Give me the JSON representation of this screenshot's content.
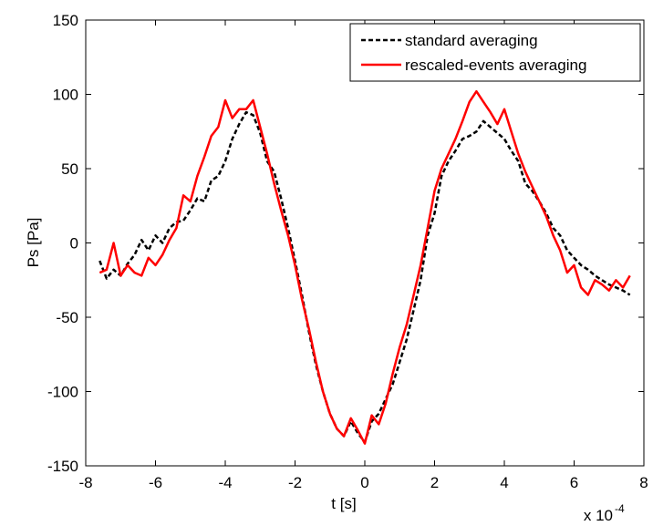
{
  "chart_data": {
    "type": "line",
    "title": "",
    "xlabel": "t [s]",
    "ylabel": "Ps [Pa]",
    "x_multiplier_label": "x 10",
    "x_multiplier_exponent": "-4",
    "xlim": [
      -8,
      8
    ],
    "ylim": [
      -150,
      150
    ],
    "x_ticks": [
      -8,
      -6,
      -4,
      -2,
      0,
      2,
      4,
      6,
      8
    ],
    "x_tick_labels": [
      "-8",
      "-6",
      "-4",
      "-2",
      "0",
      "2",
      "4",
      "6",
      "8"
    ],
    "y_ticks": [
      -150,
      -100,
      -50,
      0,
      50,
      100,
      150
    ],
    "y_tick_labels": [
      "-150",
      "-100",
      "-50",
      "0",
      "50",
      "100",
      "150"
    ],
    "grid": false,
    "legend_position": "top-right",
    "series": [
      {
        "name": "standard averaging",
        "color": "#000000",
        "dash": "dashed",
        "x": [
          -7.6,
          -7.4,
          -7.2,
          -7.0,
          -6.8,
          -6.6,
          -6.4,
          -6.2,
          -6.0,
          -5.8,
          -5.6,
          -5.4,
          -5.2,
          -5.0,
          -4.8,
          -4.6,
          -4.4,
          -4.2,
          -4.0,
          -3.8,
          -3.6,
          -3.4,
          -3.2,
          -3.0,
          -2.8,
          -2.6,
          -2.4,
          -2.2,
          -2.0,
          -1.8,
          -1.6,
          -1.4,
          -1.2,
          -1.0,
          -0.8,
          -0.6,
          -0.4,
          -0.2,
          0.0,
          0.2,
          0.4,
          0.6,
          0.8,
          1.0,
          1.2,
          1.4,
          1.6,
          1.8,
          2.0,
          2.2,
          2.4,
          2.6,
          2.8,
          3.0,
          3.2,
          3.4,
          3.6,
          3.8,
          4.0,
          4.2,
          4.4,
          4.6,
          4.8,
          5.0,
          5.2,
          5.4,
          5.6,
          5.8,
          6.0,
          6.2,
          6.4,
          6.6,
          6.8,
          7.0,
          7.2,
          7.4,
          7.6
        ],
        "values": [
          -12,
          -24,
          -18,
          -22,
          -14,
          -8,
          2,
          -5,
          5,
          0,
          10,
          14,
          15,
          22,
          30,
          28,
          42,
          45,
          55,
          70,
          80,
          88,
          86,
          74,
          55,
          48,
          30,
          10,
          -12,
          -35,
          -60,
          -82,
          -100,
          -115,
          -125,
          -130,
          -120,
          -128,
          -134,
          -120,
          -115,
          -105,
          -95,
          -80,
          -65,
          -45,
          -25,
          5,
          20,
          45,
          55,
          62,
          70,
          72,
          75,
          82,
          78,
          74,
          70,
          62,
          55,
          40,
          35,
          28,
          20,
          10,
          5,
          -5,
          -10,
          -15,
          -18,
          -22,
          -25,
          -28,
          -30,
          -32,
          -35
        ]
      },
      {
        "name": "rescaled-events averaging",
        "color": "#ff0000",
        "dash": "solid",
        "x": [
          -7.6,
          -7.4,
          -7.2,
          -7.0,
          -6.8,
          -6.6,
          -6.4,
          -6.2,
          -6.0,
          -5.8,
          -5.6,
          -5.4,
          -5.2,
          -5.0,
          -4.8,
          -4.6,
          -4.4,
          -4.2,
          -4.0,
          -3.8,
          -3.6,
          -3.4,
          -3.2,
          -3.0,
          -2.8,
          -2.6,
          -2.4,
          -2.2,
          -2.0,
          -1.8,
          -1.6,
          -1.4,
          -1.2,
          -1.0,
          -0.8,
          -0.6,
          -0.4,
          -0.2,
          0.0,
          0.2,
          0.4,
          0.6,
          0.8,
          1.0,
          1.2,
          1.4,
          1.6,
          1.8,
          2.0,
          2.2,
          2.4,
          2.6,
          2.8,
          3.0,
          3.2,
          3.4,
          3.6,
          3.8,
          4.0,
          4.2,
          4.4,
          4.6,
          4.8,
          5.0,
          5.2,
          5.4,
          5.6,
          5.8,
          6.0,
          6.2,
          6.4,
          6.6,
          6.8,
          7.0,
          7.2,
          7.4,
          7.6
        ],
        "values": [
          -20,
          -18,
          0,
          -22,
          -15,
          -20,
          -22,
          -10,
          -15,
          -8,
          2,
          10,
          32,
          28,
          45,
          58,
          72,
          78,
          96,
          84,
          90,
          90,
          96,
          78,
          60,
          40,
          22,
          5,
          -15,
          -38,
          -58,
          -80,
          -100,
          -115,
          -125,
          -130,
          -118,
          -126,
          -135,
          -116,
          -122,
          -108,
          -88,
          -70,
          -55,
          -35,
          -15,
          10,
          35,
          50,
          60,
          70,
          82,
          95,
          102,
          95,
          88,
          80,
          90,
          75,
          60,
          48,
          38,
          28,
          18,
          5,
          -5,
          -20,
          -15,
          -30,
          -35,
          -25,
          -28,
          -32,
          -25,
          -30,
          -22
        ]
      }
    ]
  }
}
